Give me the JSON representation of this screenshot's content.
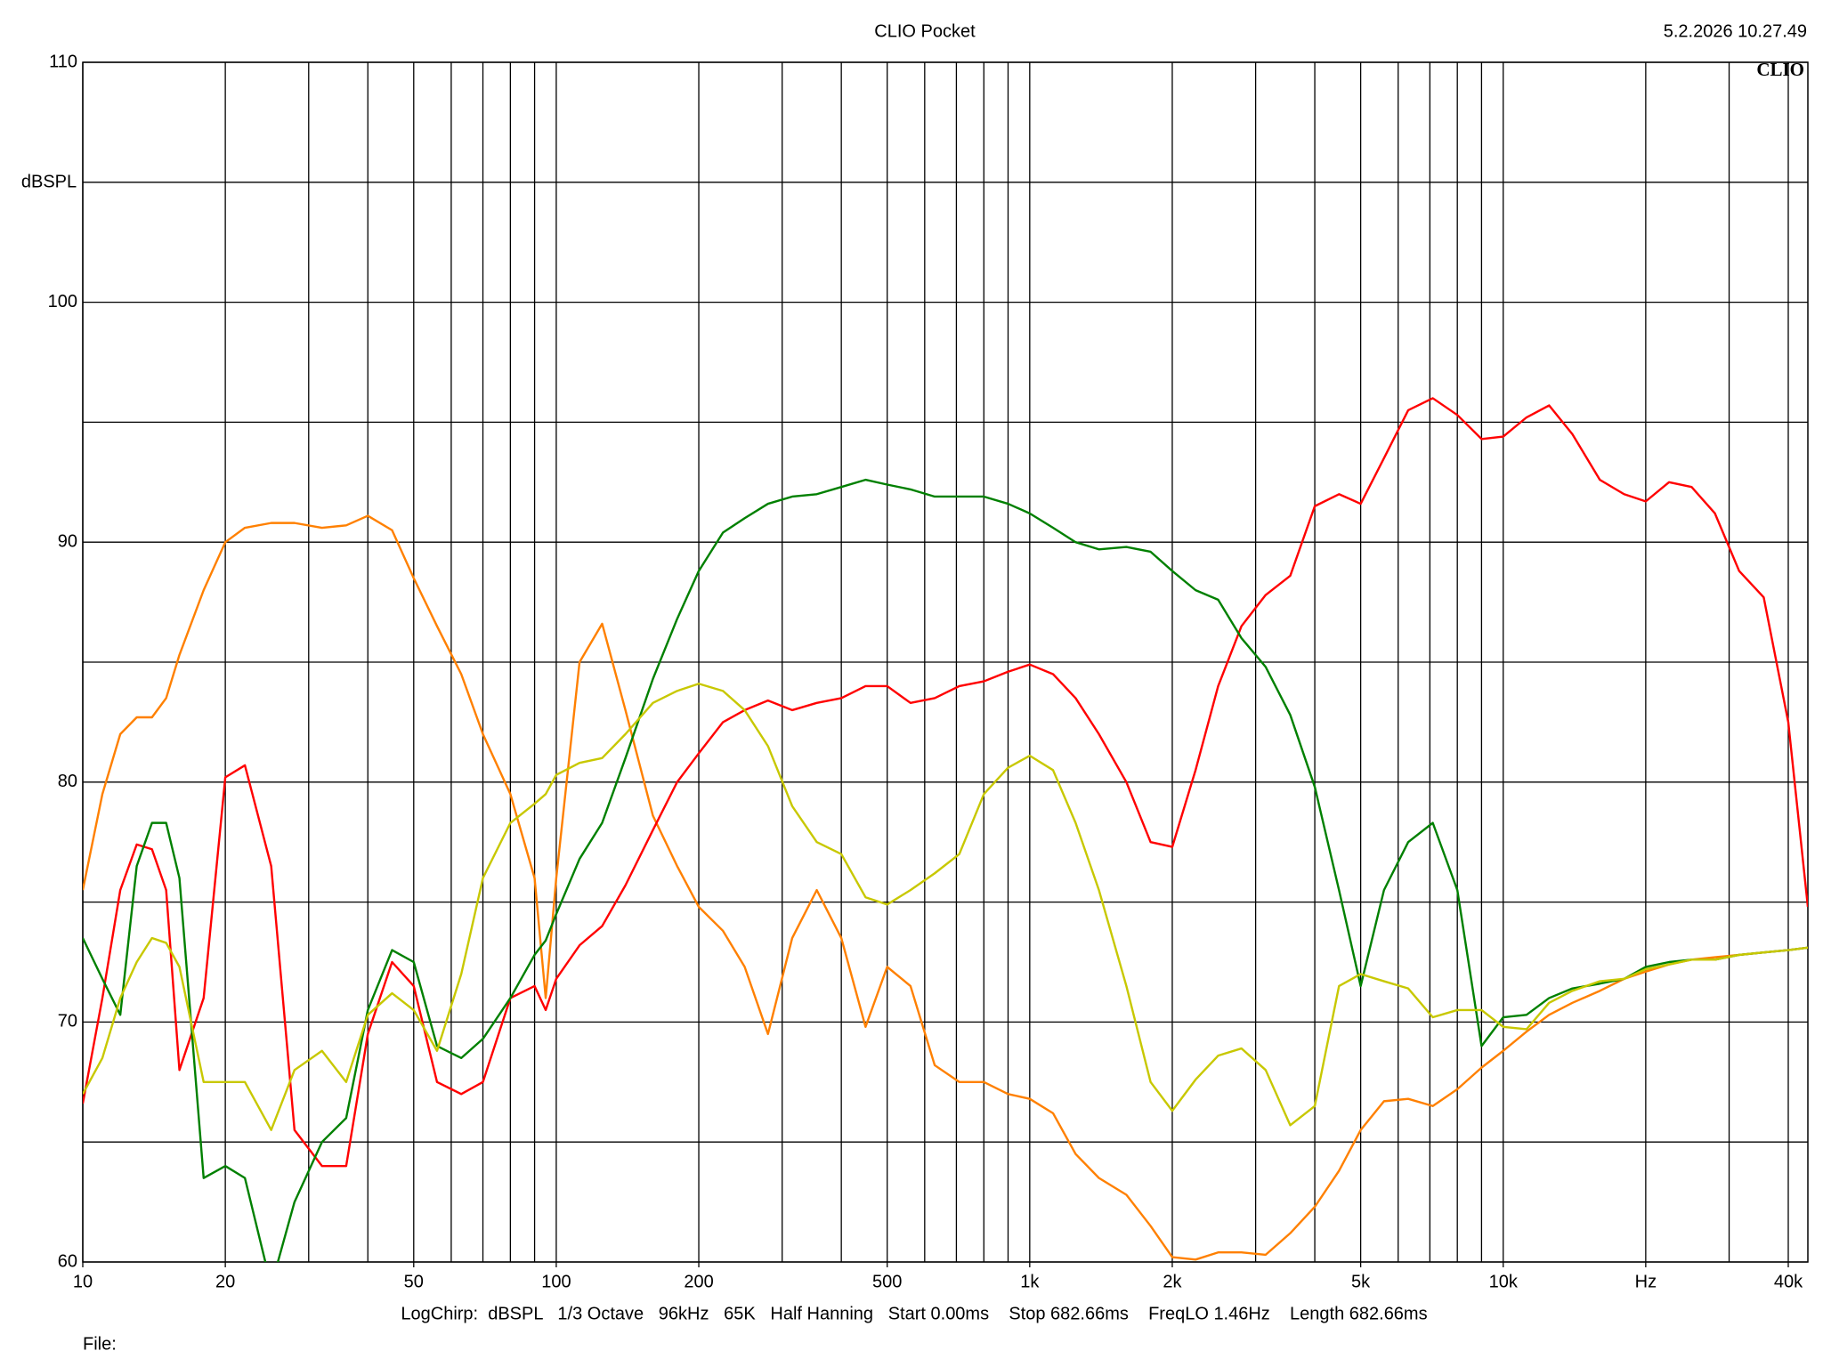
{
  "chart_data": {
    "type": "line",
    "title": "CLIO Pocket",
    "timestamp": "5.2.2026 10.27.49",
    "logo": "CLIO",
    "y_label": "dBSPL",
    "footer": "LogChirp:  dBSPL   1/3 Octave   96kHz   65K   Half Hanning   Start 0.00ms    Stop 682.66ms    FreqLO 1.46Hz    Length 682.66ms",
    "file_label": "File:",
    "log_x": true,
    "xlim": [
      10,
      44000
    ],
    "ylim": [
      60,
      110
    ],
    "xticks": [
      10,
      20,
      50,
      100,
      200,
      500,
      {
        "value": 1000,
        "label": "1k"
      },
      {
        "value": 2000,
        "label": "2k"
      },
      {
        "value": 5000,
        "label": "5k"
      },
      {
        "value": 10000,
        "label": "10k"
      },
      {
        "value": 20000,
        "label": "Hz"
      },
      {
        "value": 40000,
        "label": "40k"
      }
    ],
    "xgrid": [
      10,
      20,
      30,
      40,
      50,
      60,
      70,
      80,
      90,
      100,
      200,
      300,
      400,
      500,
      600,
      700,
      800,
      900,
      1000,
      2000,
      3000,
      4000,
      5000,
      6000,
      7000,
      8000,
      9000,
      10000,
      20000,
      30000,
      40000
    ],
    "yticks": [
      60,
      70,
      80,
      90,
      100,
      110
    ],
    "ygrid": [
      65,
      75,
      85,
      95,
      105
    ],
    "grid": true,
    "x": [
      10,
      11,
      12,
      13,
      14,
      15,
      16,
      18,
      20,
      22,
      25,
      28,
      32,
      36,
      40,
      45,
      50,
      56,
      63,
      70,
      80,
      90,
      95,
      100,
      112,
      125,
      140,
      160,
      180,
      200,
      225,
      250,
      280,
      315,
      355,
      400,
      450,
      500,
      560,
      630,
      710,
      800,
      900,
      1000,
      1120,
      1250,
      1400,
      1600,
      1800,
      2000,
      2240,
      2500,
      2800,
      3150,
      3550,
      4000,
      4500,
      5000,
      5600,
      6300,
      7100,
      8000,
      9000,
      10000,
      11200,
      12500,
      14000,
      16000,
      18000,
      20000,
      22400,
      25000,
      28000,
      31500,
      35500,
      40000,
      44000
    ],
    "series": [
      {
        "color": "#ff8000",
        "values": [
          75.5,
          79.5,
          82,
          82.7,
          82.7,
          83.5,
          85.3,
          88,
          90,
          90.6,
          90.8,
          90.8,
          90.6,
          90.7,
          91.1,
          90.5,
          88.5,
          86.5,
          84.5,
          82,
          79.5,
          76,
          71,
          76,
          85,
          86.6,
          83,
          78.6,
          76.5,
          74.8,
          73.8,
          72.3,
          69.5,
          73.5,
          75.5,
          73.5,
          69.8,
          72.3,
          71.5,
          68.2,
          67.5,
          67.5,
          67,
          66.8,
          66.2,
          64.5,
          63.5,
          62.8,
          61.5,
          60.2,
          60.1,
          60.4,
          60.4,
          60.3,
          61.2,
          62.3,
          63.8,
          65.5,
          66.7,
          66.8,
          66.5,
          67.2,
          68.1,
          68.8,
          69.6,
          70.3,
          70.8,
          71.3,
          71.8,
          72.1,
          72.4,
          72.6,
          72.7,
          72.8,
          72.9,
          73,
          73.1
        ]
      },
      {
        "color": "#ff0000",
        "values": [
          66.6,
          71,
          75.5,
          77.4,
          77.2,
          75.5,
          68,
          71,
          80.2,
          80.7,
          76.5,
          65.5,
          64,
          64,
          69.5,
          72.5,
          71.5,
          67.5,
          67,
          67.5,
          71,
          71.5,
          70.5,
          71.8,
          73.2,
          74,
          75.7,
          78,
          80,
          81.2,
          82.5,
          83,
          83.4,
          83,
          83.3,
          83.5,
          84,
          84,
          83.3,
          83.5,
          84,
          84.2,
          84.6,
          84.9,
          84.5,
          83.5,
          82,
          80,
          77.5,
          77.3,
          80.5,
          84,
          86.5,
          87.8,
          88.6,
          91.5,
          92,
          91.6,
          93.5,
          95.5,
          96,
          95.3,
          94.3,
          94.4,
          95.2,
          95.7,
          94.5,
          92.6,
          92,
          91.7,
          92.5,
          92.3,
          91.2,
          88.8,
          87.7,
          82.5,
          74.8
        ]
      },
      {
        "color": "#008000",
        "values": [
          73.5,
          71.8,
          70.3,
          76.5,
          78.3,
          78.3,
          76,
          63.5,
          64,
          63.5,
          59,
          62.5,
          65,
          66,
          70.5,
          73,
          72.5,
          69,
          68.5,
          69.3,
          71,
          72.8,
          73.4,
          74.5,
          76.8,
          78.3,
          81,
          84.3,
          86.8,
          88.8,
          90.4,
          91,
          91.6,
          91.9,
          92,
          92.3,
          92.6,
          92.4,
          92.2,
          91.9,
          91.9,
          91.9,
          91.6,
          91.2,
          90.6,
          90,
          89.7,
          89.8,
          89.6,
          88.8,
          88,
          87.6,
          86,
          84.8,
          82.8,
          79.8,
          75.5,
          71.5,
          75.5,
          77.5,
          78.3,
          75.5,
          69,
          70.2,
          70.3,
          71,
          71.4,
          71.6,
          71.8,
          72.3,
          72.5,
          72.6,
          72.6,
          72.8,
          72.9,
          73,
          73.1
        ]
      },
      {
        "color": "#c8c800",
        "values": [
          67,
          68.5,
          71,
          72.5,
          73.5,
          73.3,
          72.3,
          67.5,
          67.5,
          67.5,
          65.5,
          68,
          68.8,
          67.5,
          70.3,
          71.2,
          70.5,
          68.8,
          72,
          76,
          78.3,
          79.1,
          79.5,
          80.3,
          80.8,
          81,
          82,
          83.3,
          83.8,
          84.1,
          83.8,
          83,
          81.5,
          79,
          77.5,
          77,
          75.2,
          74.9,
          75.5,
          76.2,
          77,
          79.5,
          80.6,
          81.1,
          80.5,
          78.3,
          75.5,
          71.5,
          67.5,
          66.3,
          67.6,
          68.6,
          68.9,
          68,
          65.7,
          66.5,
          71.5,
          72,
          71.7,
          71.4,
          70.2,
          70.5,
          70.5,
          69.8,
          69.7,
          70.8,
          71.3,
          71.7,
          71.8,
          72.2,
          72.4,
          72.6,
          72.6,
          72.8,
          72.9,
          73,
          73.1
        ]
      }
    ]
  }
}
